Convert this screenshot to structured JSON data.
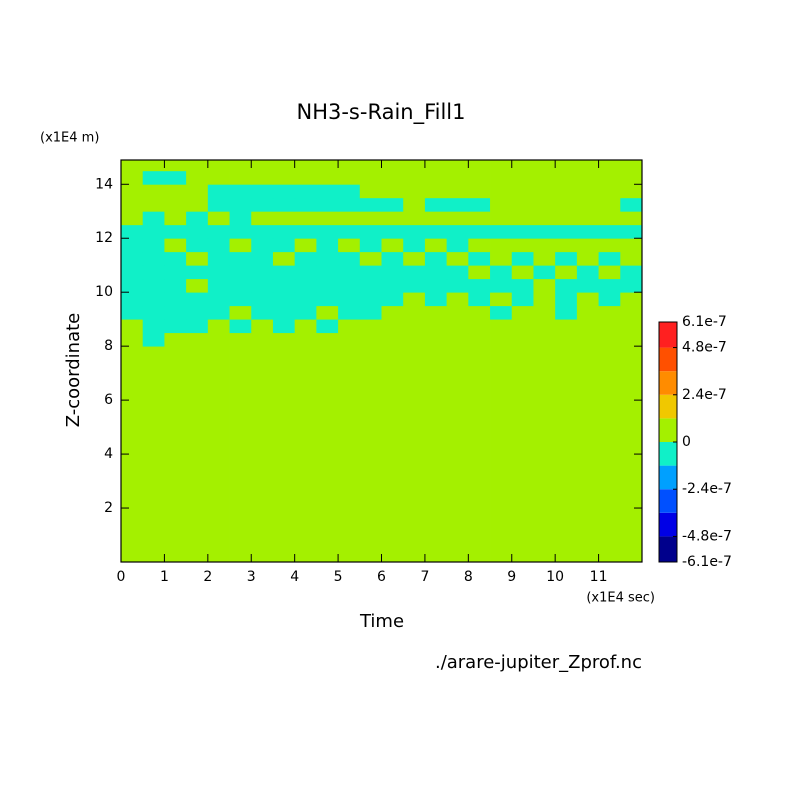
{
  "chart_data": {
    "type": "contour",
    "title": "NH3-s-Rain_Fill1",
    "xlabel": "Time",
    "xunit": "(x1E4 sec)",
    "ylabel": "Z-coordinate",
    "yunit": "(x1E4 m)",
    "footnote": "./arare-jupiter_Zprof.nc",
    "xlim": [
      0,
      12
    ],
    "ylim": [
      0,
      14.9
    ],
    "xticks": [
      0,
      1,
      2,
      3,
      4,
      5,
      6,
      7,
      8,
      9,
      10,
      11
    ],
    "yticks": [
      2,
      4,
      6,
      8,
      10,
      12,
      14
    ],
    "x_edges": [
      0,
      0.5,
      1,
      1.5,
      2,
      2.5,
      3,
      3.5,
      4,
      4.5,
      5,
      5.5,
      6,
      6.5,
      7,
      7.5,
      8,
      8.5,
      9,
      9.5,
      10,
      10.5,
      11,
      11.5,
      12
    ],
    "y_edges": [
      0,
      8,
      8.5,
      9,
      9.5,
      10,
      10.5,
      11,
      11.5,
      12,
      12.5,
      13,
      13.5,
      14,
      14.5,
      14.9
    ],
    "z": [
      [
        0,
        0,
        0,
        0,
        0,
        0,
        0,
        0,
        0,
        0,
        0,
        0,
        0,
        0,
        0,
        0,
        0,
        0,
        0,
        0,
        0,
        0,
        0,
        0
      ],
      [
        0,
        -1e-07,
        0,
        0,
        0,
        0,
        0,
        0,
        0,
        0,
        0,
        0,
        0,
        0,
        0,
        0,
        0,
        0,
        0,
        0,
        0,
        0,
        0,
        0
      ],
      [
        0,
        -1e-07,
        -1e-07,
        -1e-07,
        0,
        -1e-07,
        0,
        -1e-07,
        0,
        -1e-07,
        0,
        0,
        0,
        0,
        0,
        0,
        0,
        0,
        0,
        0,
        0,
        0,
        0,
        0
      ],
      [
        -1e-07,
        -1e-07,
        -1e-07,
        -1e-07,
        -1e-07,
        0,
        -1e-07,
        -1e-07,
        -1e-07,
        0,
        -1e-07,
        -1e-07,
        0,
        0,
        0,
        0,
        0,
        -1e-07,
        0,
        0,
        -1e-07,
        0,
        0,
        0
      ],
      [
        -1e-07,
        -1e-07,
        -1e-07,
        -1e-07,
        -1e-07,
        -1e-07,
        -1e-07,
        -1e-07,
        -1e-07,
        -1e-07,
        -1e-07,
        -1e-07,
        -1e-07,
        0,
        -1e-07,
        0,
        -1e-07,
        0,
        -1e-07,
        0,
        -1e-07,
        0,
        -1e-07,
        0
      ],
      [
        -1e-07,
        -1e-07,
        -1e-07,
        0,
        -1e-07,
        -1e-07,
        -1e-07,
        -1e-07,
        -1e-07,
        -1e-07,
        -1e-07,
        -1e-07,
        -1e-07,
        -1e-07,
        -1e-07,
        -1e-07,
        -1e-07,
        -1e-07,
        -1e-07,
        0,
        -1e-07,
        -1e-07,
        -1e-07,
        -1e-07
      ],
      [
        -1e-07,
        -1e-07,
        -1e-07,
        -1e-07,
        -1e-07,
        -1e-07,
        -1e-07,
        -1e-07,
        -1e-07,
        -1e-07,
        -1e-07,
        -1e-07,
        -1e-07,
        -1e-07,
        -1e-07,
        -1e-07,
        0,
        -1e-07,
        0,
        -1e-07,
        0,
        -1e-07,
        0,
        -1e-07
      ],
      [
        -1e-07,
        -1e-07,
        -1e-07,
        0,
        -1e-07,
        -1e-07,
        -1e-07,
        0,
        -1e-07,
        -1e-07,
        -1e-07,
        0,
        -1e-07,
        0,
        -1e-07,
        0,
        -1e-07,
        0,
        -1e-07,
        0,
        -1e-07,
        0,
        -1e-07,
        0
      ],
      [
        -1e-07,
        -1e-07,
        0,
        -1e-07,
        -1e-07,
        0,
        -1e-07,
        -1e-07,
        0,
        -1e-07,
        0,
        -1e-07,
        0,
        -1e-07,
        0,
        -1e-07,
        0,
        0,
        0,
        0,
        0,
        0,
        0,
        0
      ],
      [
        -1e-07,
        -1e-07,
        -1e-07,
        -1e-07,
        -1e-07,
        -1e-07,
        -1e-07,
        -1e-07,
        -1e-07,
        -1e-07,
        -1e-07,
        -1e-07,
        -1e-07,
        -1e-07,
        -1e-07,
        -1e-07,
        -1e-07,
        -1e-07,
        -1e-07,
        -1e-07,
        -1e-07,
        -1e-07,
        -1e-07,
        -1e-07
      ],
      [
        0,
        -1e-07,
        0,
        -1e-07,
        0,
        -1e-07,
        0,
        0,
        0,
        0,
        0,
        0,
        0,
        0,
        0,
        0,
        0,
        0,
        0,
        0,
        0,
        0,
        0,
        0
      ],
      [
        0,
        0,
        0,
        0,
        -1e-07,
        -1e-07,
        -1e-07,
        -1e-07,
        -1e-07,
        -1e-07,
        -1e-07,
        -1e-07,
        -1e-07,
        0,
        -1e-07,
        -1e-07,
        -1e-07,
        0,
        0,
        0,
        0,
        0,
        0,
        -1e-07
      ],
      [
        0,
        0,
        0,
        0,
        -1e-07,
        -1e-07,
        -1e-07,
        -1e-07,
        -1e-07,
        -1e-07,
        -1e-07,
        0,
        0,
        0,
        0,
        0,
        0,
        0,
        0,
        0,
        0,
        0,
        0,
        0
      ],
      [
        0,
        -1e-07,
        -1e-07,
        0,
        0,
        0,
        0,
        0,
        0,
        0,
        0,
        0,
        0,
        0,
        0,
        0,
        0,
        0,
        0,
        0,
        0,
        0,
        0,
        0
      ],
      [
        0,
        0,
        0,
        0,
        0,
        0,
        0,
        0,
        0,
        0,
        0,
        0,
        0,
        0,
        0,
        0,
        0,
        0,
        0,
        0,
        0,
        0,
        0,
        0
      ]
    ],
    "colorbar": {
      "levels": [
        -6.1e-07,
        -4.8e-07,
        -3.6e-07,
        -2.4e-07,
        -1.2e-07,
        0,
        1.2e-07,
        2.4e-07,
        3.6e-07,
        4.8e-07,
        6.1e-07
      ],
      "colors": [
        "#00008c",
        "#0000e6",
        "#0050ff",
        "#00a0ff",
        "#10f0c8",
        "#a4f000",
        "#f0c800",
        "#ff8c00",
        "#ff5000",
        "#ff2020"
      ],
      "ticks": [
        -6.1e-07,
        -4.8e-07,
        -2.4e-07,
        0,
        2.4e-07,
        4.8e-07,
        6.1e-07
      ]
    }
  }
}
